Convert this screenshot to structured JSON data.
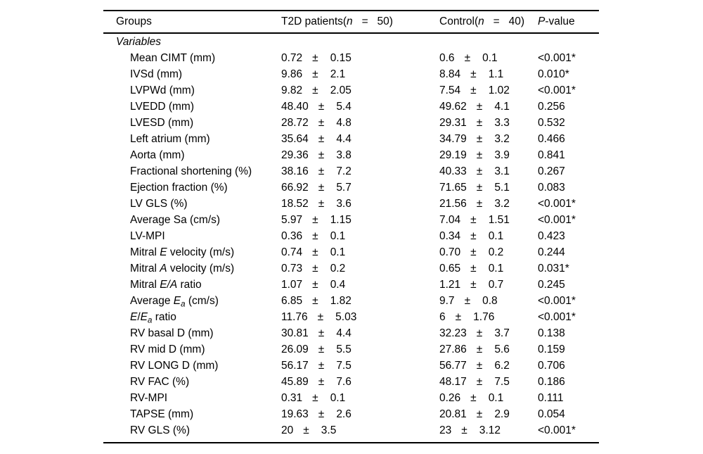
{
  "table": {
    "pm_symbol": "±",
    "header": {
      "groups": [
        {
          "t": "Groups"
        }
      ],
      "t2d": [
        {
          "t": "T2D patients("
        },
        {
          "t": "n",
          "i": 1
        },
        {
          "t": "   =   50)"
        }
      ],
      "control": [
        {
          "t": "Control("
        },
        {
          "t": "n",
          "i": 1
        },
        {
          "t": "   =   40)"
        }
      ],
      "pvalue": [
        {
          "t": "P",
          "i": 1
        },
        {
          "t": "-value"
        }
      ]
    },
    "section_label": [
      {
        "t": "Variables",
        "i": 1
      }
    ],
    "rows": [
      {
        "label": [
          {
            "t": "Mean CIMT (mm)"
          }
        ],
        "t2d": {
          "mean": "0.72",
          "sd": "0.15"
        },
        "control": {
          "mean": "0.6",
          "sd": "0.1"
        },
        "p": "<0.001*"
      },
      {
        "label": [
          {
            "t": "IVSd (mm)"
          }
        ],
        "t2d": {
          "mean": "9.86",
          "sd": "2.1"
        },
        "control": {
          "mean": "8.84",
          "sd": "1.1"
        },
        "p": "0.010*"
      },
      {
        "label": [
          {
            "t": "LVPWd (mm)"
          }
        ],
        "t2d": {
          "mean": "9.82",
          "sd": "2.05"
        },
        "control": {
          "mean": "7.54",
          "sd": "1.02"
        },
        "p": "<0.001*"
      },
      {
        "label": [
          {
            "t": "LVEDD (mm)"
          }
        ],
        "t2d": {
          "mean": "48.40",
          "sd": "5.4"
        },
        "control": {
          "mean": "49.62",
          "sd": "4.1"
        },
        "p": "0.256"
      },
      {
        "label": [
          {
            "t": "LVESD (mm)"
          }
        ],
        "t2d": {
          "mean": "28.72",
          "sd": "4.8"
        },
        "control": {
          "mean": "29.31",
          "sd": "3.3"
        },
        "p": "0.532"
      },
      {
        "label": [
          {
            "t": "Left atrium (mm)"
          }
        ],
        "t2d": {
          "mean": "35.64",
          "sd": "4.4"
        },
        "control": {
          "mean": "34.79",
          "sd": "3.2"
        },
        "p": "0.466"
      },
      {
        "label": [
          {
            "t": "Aorta (mm)"
          }
        ],
        "t2d": {
          "mean": "29.36",
          "sd": "3.8"
        },
        "control": {
          "mean": "29.19",
          "sd": "3.9"
        },
        "p": "0.841"
      },
      {
        "label": [
          {
            "t": "Fractional shortening (%)"
          }
        ],
        "t2d": {
          "mean": "38.16",
          "sd": "7.2"
        },
        "control": {
          "mean": "40.33",
          "sd": "3.1"
        },
        "p": "0.267"
      },
      {
        "label": [
          {
            "t": "Ejection fraction (%)"
          }
        ],
        "t2d": {
          "mean": "66.92",
          "sd": "5.7"
        },
        "control": {
          "mean": "71.65",
          "sd": "5.1"
        },
        "p": "0.083"
      },
      {
        "label": [
          {
            "t": "LV GLS (%)"
          }
        ],
        "t2d": {
          "mean": "18.52",
          "sd": "3.6"
        },
        "control": {
          "mean": "21.56",
          "sd": "3.2"
        },
        "p": "<0.001*"
      },
      {
        "label": [
          {
            "t": "Average Sa (cm/s)"
          }
        ],
        "t2d": {
          "mean": "5.97",
          "sd": "1.15"
        },
        "control": {
          "mean": "7.04",
          "sd": "1.51"
        },
        "p": "<0.001*"
      },
      {
        "label": [
          {
            "t": "LV-MPI"
          }
        ],
        "t2d": {
          "mean": "0.36",
          "sd": "0.1"
        },
        "control": {
          "mean": "0.34",
          "sd": "0.1"
        },
        "p": "0.423"
      },
      {
        "label": [
          {
            "t": "Mitral "
          },
          {
            "t": "E",
            "i": 1
          },
          {
            "t": " velocity (m/s)"
          }
        ],
        "t2d": {
          "mean": "0.74",
          "sd": "0.1"
        },
        "control": {
          "mean": "0.70",
          "sd": "0.2"
        },
        "p": "0.244"
      },
      {
        "label": [
          {
            "t": "Mitral "
          },
          {
            "t": "A",
            "i": 1
          },
          {
            "t": " velocity (m/s)"
          }
        ],
        "t2d": {
          "mean": "0.73",
          "sd": "0.2"
        },
        "control": {
          "mean": "0.65",
          "sd": "0.1"
        },
        "p": "0.031*"
      },
      {
        "label": [
          {
            "t": "Mitral "
          },
          {
            "t": "E/A",
            "i": 1
          },
          {
            "t": " ratio"
          }
        ],
        "t2d": {
          "mean": "1.07",
          "sd": "0.4"
        },
        "control": {
          "mean": "1.21",
          "sd": "0.7"
        },
        "p": "0.245"
      },
      {
        "label": [
          {
            "t": "Average "
          },
          {
            "t": "E",
            "i": 1
          },
          {
            "t": "a",
            "i": 1,
            "sub": 1
          },
          {
            "t": " (cm/s)"
          }
        ],
        "t2d": {
          "mean": "6.85",
          "sd": "1.82"
        },
        "control": {
          "mean": "9.7",
          "sd": "0.8"
        },
        "p": "<0.001*"
      },
      {
        "label": [
          {
            "t": "E",
            "i": 1
          },
          {
            "t": "/"
          },
          {
            "t": "E",
            "i": 1
          },
          {
            "t": "a",
            "i": 1,
            "sub": 1
          },
          {
            "t": " ratio"
          }
        ],
        "t2d": {
          "mean": "11.76",
          "sd": "5.03"
        },
        "control": {
          "mean": "6",
          "sd": "1.76"
        },
        "p": "<0.001*"
      },
      {
        "label": [
          {
            "t": "RV basal D (mm)"
          }
        ],
        "t2d": {
          "mean": "30.81",
          "sd": "4.4"
        },
        "control": {
          "mean": "32.23",
          "sd": "3.7"
        },
        "p": "0.138"
      },
      {
        "label": [
          {
            "t": "RV mid D (mm)"
          }
        ],
        "t2d": {
          "mean": "26.09",
          "sd": "5.5"
        },
        "control": {
          "mean": "27.86",
          "sd": "5.6"
        },
        "p": "0.159"
      },
      {
        "label": [
          {
            "t": "RV LONG D (mm)"
          }
        ],
        "t2d": {
          "mean": "56.17",
          "sd": "7.5"
        },
        "control": {
          "mean": "56.77",
          "sd": "6.2"
        },
        "p": "0.706"
      },
      {
        "label": [
          {
            "t": "RV FAC (%)"
          }
        ],
        "t2d": {
          "mean": "45.89",
          "sd": "7.6"
        },
        "control": {
          "mean": "48.17",
          "sd": "7.5"
        },
        "p": "0.186"
      },
      {
        "label": [
          {
            "t": "RV-MPI"
          }
        ],
        "t2d": {
          "mean": "0.31",
          "sd": "0.1"
        },
        "control": {
          "mean": "0.26",
          "sd": "0.1"
        },
        "p": "0.111"
      },
      {
        "label": [
          {
            "t": "TAPSE (mm)"
          }
        ],
        "t2d": {
          "mean": "19.63",
          "sd": "2.6"
        },
        "control": {
          "mean": "20.81",
          "sd": "2.9"
        },
        "p": "0.054"
      },
      {
        "label": [
          {
            "t": "RV GLS (%)"
          }
        ],
        "t2d": {
          "mean": "20",
          "sd": "3.5"
        },
        "control": {
          "mean": "23",
          "sd": "3.12"
        },
        "p": "<0.001*"
      }
    ]
  }
}
